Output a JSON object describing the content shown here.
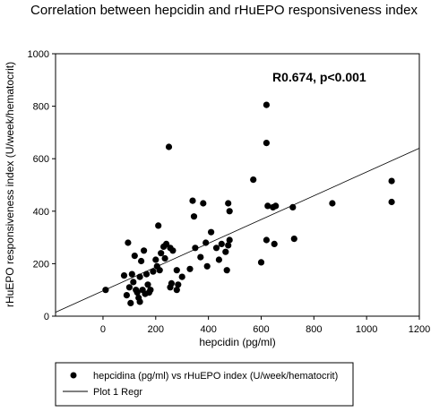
{
  "chart_data": {
    "type": "scatter",
    "title": "Correlation between hepcidin and rHuEPO responsiveness index",
    "xlabel": "hepcidin (pg/ml)",
    "ylabel": "rHuEPO responsiveness index (U/week/hematocrit)",
    "xlim": [
      -180,
      1200
    ],
    "ylim": [
      0,
      1000
    ],
    "x_ticks": [
      "0",
      "200",
      "400",
      "600",
      "800",
      "1000",
      "1200"
    ],
    "y_ticks": [
      "0",
      "200",
      "400",
      "600",
      "800",
      "1000"
    ],
    "annotation": "R0.674, p<0.001",
    "grid": false,
    "legend_position": "bottom",
    "series": [
      {
        "name": "hepcidina (pg/ml) vs rHuEPO index (U/week/hematocrit)",
        "marker": "circle",
        "color": "#000000",
        "points": [
          [
            10,
            100
          ],
          [
            80,
            155
          ],
          [
            90,
            80
          ],
          [
            95,
            280
          ],
          [
            100,
            110
          ],
          [
            105,
            50
          ],
          [
            110,
            160
          ],
          [
            115,
            130
          ],
          [
            120,
            230
          ],
          [
            125,
            100
          ],
          [
            130,
            90
          ],
          [
            135,
            70
          ],
          [
            140,
            150
          ],
          [
            140,
            55
          ],
          [
            145,
            210
          ],
          [
            150,
            100
          ],
          [
            155,
            250
          ],
          [
            160,
            85
          ],
          [
            165,
            160
          ],
          [
            170,
            120
          ],
          [
            175,
            90
          ],
          [
            180,
            100
          ],
          [
            190,
            170
          ],
          [
            200,
            215
          ],
          [
            205,
            190
          ],
          [
            210,
            345
          ],
          [
            215,
            175
          ],
          [
            220,
            240
          ],
          [
            230,
            265
          ],
          [
            235,
            220
          ],
          [
            240,
            275
          ],
          [
            250,
            645
          ],
          [
            255,
            110
          ],
          [
            255,
            260
          ],
          [
            260,
            125
          ],
          [
            265,
            250
          ],
          [
            280,
            175
          ],
          [
            285,
            120
          ],
          [
            280,
            100
          ],
          [
            300,
            150
          ],
          [
            330,
            180
          ],
          [
            340,
            440
          ],
          [
            345,
            380
          ],
          [
            350,
            260
          ],
          [
            370,
            225
          ],
          [
            380,
            430
          ],
          [
            390,
            280
          ],
          [
            395,
            190
          ],
          [
            410,
            320
          ],
          [
            430,
            260
          ],
          [
            440,
            215
          ],
          [
            450,
            275
          ],
          [
            465,
            245
          ],
          [
            470,
            175
          ],
          [
            475,
            270
          ],
          [
            475,
            430
          ],
          [
            480,
            400
          ],
          [
            480,
            290
          ],
          [
            570,
            520
          ],
          [
            600,
            205
          ],
          [
            620,
            290
          ],
          [
            625,
            420
          ],
          [
            620,
            805
          ],
          [
            620,
            660
          ],
          [
            645,
            415
          ],
          [
            655,
            420
          ],
          [
            650,
            275
          ],
          [
            720,
            415
          ],
          [
            725,
            295
          ],
          [
            870,
            430
          ],
          [
            1095,
            515
          ],
          [
            1095,
            435
          ]
        ]
      },
      {
        "name": "Plot 1 Regr",
        "type": "line",
        "color": "#000000",
        "line": [
          [
            -180,
            15
          ],
          [
            1200,
            640
          ]
        ]
      }
    ]
  }
}
